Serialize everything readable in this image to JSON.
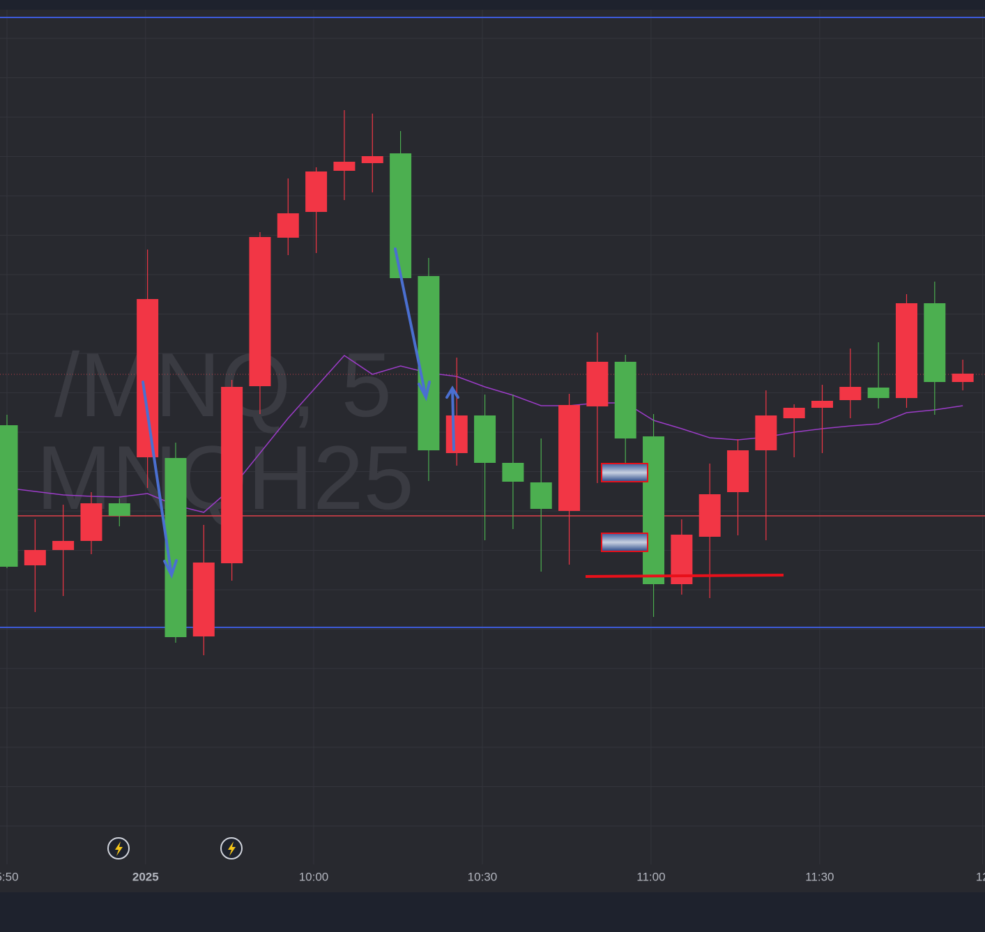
{
  "chart_data": {
    "type": "candlestick",
    "watermark": [
      "/MNQ, 5",
      "MNQH25"
    ],
    "xlim": [
      -0.248,
      34.79
    ],
    "ylim": [
      0,
      1280
    ],
    "xticks": [
      {
        "value": 0,
        "label": "5:50"
      },
      {
        "value": 4.93,
        "label": "2025"
      },
      {
        "value": 10.91,
        "label": "10:00"
      },
      {
        "value": 16.91,
        "label": "10:30"
      },
      {
        "value": 22.91,
        "label": "11:00"
      },
      {
        "value": 28.91,
        "label": "11:30"
      },
      {
        "value": 34.7,
        "label": "12"
      }
    ],
    "colors": {
      "up": "#4caf50",
      "down": "#f23645",
      "ma": "#9c3cc8"
    },
    "open": [
      467,
      491,
      504,
      558,
      540,
      851,
      366,
      473,
      725,
      940,
      974,
      1034,
      1048,
      1056,
      881,
      634,
      684,
      616,
      589,
      550,
      699,
      761,
      651,
      442,
      513,
      571,
      634,
      684,
      695,
      705,
      725,
      709,
      845,
      732,
      744
    ],
    "high": [
      685,
      535,
      556,
      574,
      565,
      922,
      645,
      527,
      735,
      947,
      1024,
      1040,
      1122,
      1117,
      1092,
      910,
      767,
      714,
      714,
      651,
      715,
      803,
      771,
      686,
      535,
      615,
      650,
      720,
      700,
      728,
      780,
      789,
      858,
      876,
      764
    ],
    "low": [
      465,
      402,
      425,
      485,
      525,
      580,
      358,
      340,
      447,
      686,
      914,
      917,
      993,
      1004,
      880,
      590,
      612,
      505,
      521,
      460,
      470,
      587,
      604,
      395,
      427,
      422,
      512,
      505,
      624,
      630,
      680,
      694,
      695,
      685,
      720
    ],
    "close": [
      670,
      469,
      491,
      504,
      558,
      624,
      623,
      367,
      472,
      726,
      939,
      976,
      1035,
      1046,
      1060,
      884,
      630,
      684,
      616,
      588,
      547,
      697,
      761,
      654,
      442,
      510,
      574,
      634,
      680,
      695,
      706,
      724,
      709,
      845,
      732
    ],
    "ma": [
      580,
      575,
      570,
      568,
      567,
      572,
      555,
      545,
      580,
      630,
      680,
      725,
      770,
      743,
      755,
      745,
      740,
      725,
      713,
      698,
      698,
      702,
      702,
      677,
      665,
      652,
      649,
      653,
      660,
      665,
      669,
      672,
      688,
      692,
      698
    ]
  }
}
